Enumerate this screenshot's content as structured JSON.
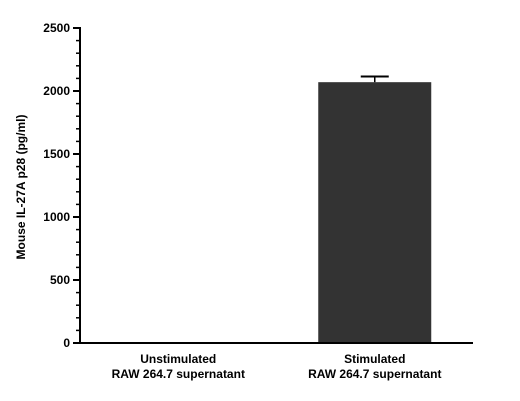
{
  "chart_data": {
    "type": "bar",
    "title": "",
    "xlabel": "",
    "ylabel": "Mouse IL-27A p28 (pg/ml)",
    "categories": [
      [
        "Unstimulated",
        "RAW 264.7 supernatant"
      ],
      [
        "Stimulated",
        "RAW 264.7 supernatant"
      ]
    ],
    "values": [
      0,
      2070
    ],
    "errors": [
      0,
      45
    ],
    "ylim": [
      0,
      2500
    ],
    "yticks": [
      0,
      500,
      1000,
      1500,
      2000,
      2500
    ],
    "minor_ticks_per_interval": 4,
    "bar_color": "#333333",
    "grid": false,
    "legend": "none"
  }
}
